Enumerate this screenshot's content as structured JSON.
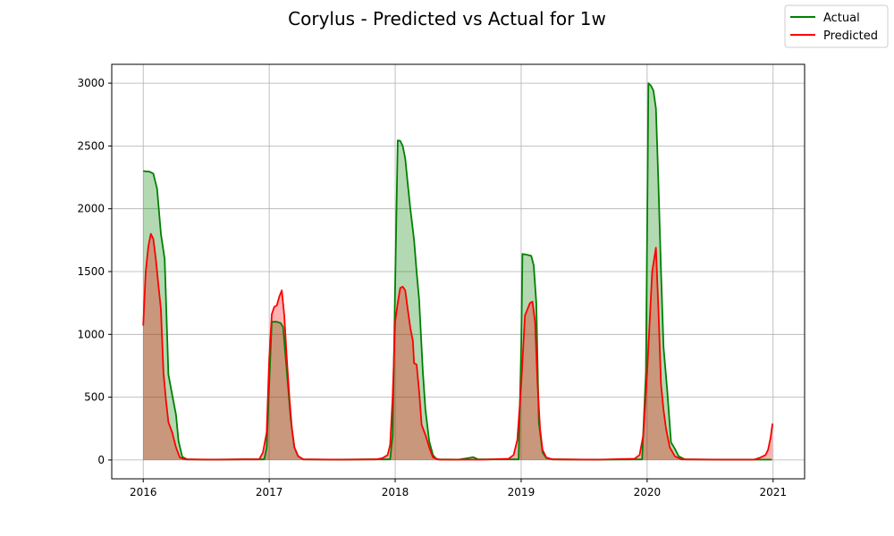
{
  "chart_data": {
    "type": "area",
    "title": "Corylus - Predicted vs Actual for 1w",
    "xlabel": "",
    "ylabel": "",
    "xlim": [
      2015.75,
      2021.25
    ],
    "ylim": [
      -150,
      3150
    ],
    "xticks": [
      2016,
      2017,
      2018,
      2019,
      2020,
      2021
    ],
    "yticks": [
      0,
      500,
      1000,
      1500,
      2000,
      2500,
      3000
    ],
    "grid": true,
    "legend_position": "top-right",
    "series": [
      {
        "name": "Actual",
        "color": "#008000",
        "fill": "rgba(0,128,0,0.3)",
        "points": [
          [
            2016.0,
            2300
          ],
          [
            2016.05,
            2295
          ],
          [
            2016.08,
            2280
          ],
          [
            2016.11,
            2160
          ],
          [
            2016.14,
            1800
          ],
          [
            2016.17,
            1600
          ],
          [
            2016.2,
            680
          ],
          [
            2016.23,
            520
          ],
          [
            2016.26,
            360
          ],
          [
            2016.28,
            150
          ],
          [
            2016.31,
            25
          ],
          [
            2016.35,
            5
          ],
          [
            2016.5,
            3
          ],
          [
            2016.8,
            5
          ],
          [
            2016.96,
            5
          ],
          [
            2016.98,
            100
          ],
          [
            2017.0,
            600
          ],
          [
            2017.02,
            1100
          ],
          [
            2017.06,
            1100
          ],
          [
            2017.09,
            1090
          ],
          [
            2017.11,
            1060
          ],
          [
            2017.14,
            700
          ],
          [
            2017.17,
            330
          ],
          [
            2017.2,
            100
          ],
          [
            2017.23,
            30
          ],
          [
            2017.27,
            5
          ],
          [
            2017.5,
            3
          ],
          [
            2017.8,
            5
          ],
          [
            2017.96,
            5
          ],
          [
            2017.98,
            200
          ],
          [
            2018.0,
            1400
          ],
          [
            2018.02,
            2545
          ],
          [
            2018.04,
            2540
          ],
          [
            2018.06,
            2500
          ],
          [
            2018.08,
            2400
          ],
          [
            2018.1,
            2200
          ],
          [
            2018.12,
            2000
          ],
          [
            2018.15,
            1750
          ],
          [
            2018.17,
            1500
          ],
          [
            2018.19,
            1280
          ],
          [
            2018.22,
            700
          ],
          [
            2018.24,
            400
          ],
          [
            2018.27,
            150
          ],
          [
            2018.3,
            40
          ],
          [
            2018.33,
            5
          ],
          [
            2018.5,
            3
          ],
          [
            2018.58,
            15
          ],
          [
            2018.62,
            22
          ],
          [
            2018.66,
            5
          ],
          [
            2018.9,
            5
          ],
          [
            2018.98,
            5
          ],
          [
            2019.0,
            900
          ],
          [
            2019.01,
            1640
          ],
          [
            2019.04,
            1635
          ],
          [
            2019.08,
            1625
          ],
          [
            2019.1,
            1550
          ],
          [
            2019.12,
            1250
          ],
          [
            2019.14,
            300
          ],
          [
            2019.17,
            60
          ],
          [
            2019.2,
            15
          ],
          [
            2019.25,
            5
          ],
          [
            2019.6,
            3
          ],
          [
            2019.96,
            5
          ],
          [
            2019.99,
            700
          ],
          [
            2020.01,
            3000
          ],
          [
            2020.03,
            2980
          ],
          [
            2020.05,
            2940
          ],
          [
            2020.07,
            2800
          ],
          [
            2020.09,
            2200
          ],
          [
            2020.11,
            1500
          ],
          [
            2020.13,
            900
          ],
          [
            2020.16,
            550
          ],
          [
            2020.19,
            140
          ],
          [
            2020.22,
            90
          ],
          [
            2020.25,
            30
          ],
          [
            2020.3,
            5
          ],
          [
            2020.6,
            3
          ],
          [
            2020.99,
            3
          ]
        ]
      },
      {
        "name": "Predicted",
        "color": "#ff0000",
        "fill": "rgba(255,0,0,0.3)",
        "points": [
          [
            2016.0,
            1070
          ],
          [
            2016.02,
            1500
          ],
          [
            2016.04,
            1700
          ],
          [
            2016.06,
            1800
          ],
          [
            2016.08,
            1760
          ],
          [
            2016.1,
            1600
          ],
          [
            2016.12,
            1400
          ],
          [
            2016.14,
            1200
          ],
          [
            2016.16,
            700
          ],
          [
            2016.18,
            480
          ],
          [
            2016.2,
            300
          ],
          [
            2016.23,
            220
          ],
          [
            2016.26,
            100
          ],
          [
            2016.29,
            20
          ],
          [
            2016.33,
            5
          ],
          [
            2016.6,
            3
          ],
          [
            2016.8,
            5
          ],
          [
            2016.92,
            5
          ],
          [
            2016.95,
            60
          ],
          [
            2016.98,
            220
          ],
          [
            2017.0,
            800
          ],
          [
            2017.02,
            1160
          ],
          [
            2017.04,
            1220
          ],
          [
            2017.06,
            1230
          ],
          [
            2017.08,
            1300
          ],
          [
            2017.1,
            1350
          ],
          [
            2017.12,
            1150
          ],
          [
            2017.14,
            800
          ],
          [
            2017.16,
            500
          ],
          [
            2017.18,
            250
          ],
          [
            2017.2,
            100
          ],
          [
            2017.23,
            30
          ],
          [
            2017.27,
            5
          ],
          [
            2017.6,
            3
          ],
          [
            2017.85,
            5
          ],
          [
            2017.9,
            15
          ],
          [
            2017.94,
            40
          ],
          [
            2017.96,
            120
          ],
          [
            2017.98,
            500
          ],
          [
            2018.0,
            1100
          ],
          [
            2018.02,
            1250
          ],
          [
            2018.04,
            1370
          ],
          [
            2018.06,
            1380
          ],
          [
            2018.08,
            1350
          ],
          [
            2018.1,
            1200
          ],
          [
            2018.12,
            1050
          ],
          [
            2018.14,
            950
          ],
          [
            2018.15,
            770
          ],
          [
            2018.17,
            760
          ],
          [
            2018.19,
            550
          ],
          [
            2018.21,
            280
          ],
          [
            2018.24,
            200
          ],
          [
            2018.27,
            100
          ],
          [
            2018.3,
            20
          ],
          [
            2018.35,
            3
          ],
          [
            2018.7,
            3
          ],
          [
            2018.9,
            10
          ],
          [
            2018.94,
            40
          ],
          [
            2018.97,
            160
          ],
          [
            2019.0,
            600
          ],
          [
            2019.03,
            1150
          ],
          [
            2019.05,
            1200
          ],
          [
            2019.07,
            1250
          ],
          [
            2019.09,
            1260
          ],
          [
            2019.11,
            1100
          ],
          [
            2019.13,
            600
          ],
          [
            2019.15,
            250
          ],
          [
            2019.17,
            80
          ],
          [
            2019.2,
            20
          ],
          [
            2019.25,
            5
          ],
          [
            2019.6,
            3
          ],
          [
            2019.9,
            10
          ],
          [
            2019.94,
            40
          ],
          [
            2019.97,
            200
          ],
          [
            2020.0,
            700
          ],
          [
            2020.02,
            1100
          ],
          [
            2020.04,
            1500
          ],
          [
            2020.07,
            1690
          ],
          [
            2020.09,
            1200
          ],
          [
            2020.11,
            600
          ],
          [
            2020.13,
            400
          ],
          [
            2020.15,
            250
          ],
          [
            2020.18,
            100
          ],
          [
            2020.22,
            30
          ],
          [
            2020.27,
            5
          ],
          [
            2020.6,
            3
          ],
          [
            2020.85,
            3
          ],
          [
            2020.9,
            20
          ],
          [
            2020.94,
            40
          ],
          [
            2020.96,
            80
          ],
          [
            2020.98,
            180
          ],
          [
            2020.995,
            290
          ]
        ]
      }
    ]
  }
}
